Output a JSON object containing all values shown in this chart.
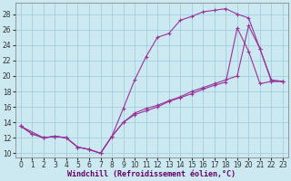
{
  "bg_color": "#cce8f0",
  "grid_color": "#99ccdd",
  "line_color": "#993399",
  "xlabel": "Windchill (Refroidissement éolien,°C)",
  "xlim": [
    -0.5,
    23.5
  ],
  "ylim": [
    9.5,
    29.5
  ],
  "xticks": [
    0,
    1,
    2,
    3,
    4,
    5,
    6,
    7,
    8,
    9,
    10,
    11,
    12,
    13,
    14,
    15,
    16,
    17,
    18,
    19,
    20,
    21,
    22,
    23
  ],
  "yticks": [
    10,
    12,
    14,
    16,
    18,
    20,
    22,
    24,
    26,
    28
  ],
  "curve1_x": [
    0,
    1,
    2,
    3,
    4,
    5,
    6,
    7,
    8,
    9,
    10,
    11,
    12,
    13,
    14,
    15,
    16,
    17,
    18,
    19,
    20,
    21,
    22,
    23
  ],
  "curve1_y": [
    13.5,
    12.5,
    12.0,
    12.2,
    12.0,
    10.8,
    10.5,
    10.0,
    12.2,
    15.8,
    19.5,
    22.5,
    25.0,
    25.5,
    27.2,
    27.7,
    28.3,
    28.5,
    28.7,
    28.0,
    27.5,
    23.5,
    19.5,
    19.3
  ],
  "curve2_x": [
    0,
    1,
    2,
    3,
    4,
    5,
    6,
    7,
    8,
    9,
    10,
    11,
    12,
    13,
    14,
    15,
    16,
    17,
    18,
    19,
    20,
    21,
    22,
    23
  ],
  "curve2_y": [
    13.5,
    12.5,
    12.0,
    12.2,
    12.0,
    10.8,
    10.5,
    10.0,
    12.2,
    14.0,
    15.0,
    15.5,
    16.0,
    16.7,
    17.2,
    17.7,
    18.3,
    18.8,
    19.2,
    26.2,
    23.2,
    19.0,
    19.3,
    19.3
  ],
  "curve3_x": [
    0,
    2,
    3,
    4,
    5,
    6,
    7,
    8,
    9,
    10,
    11,
    12,
    13,
    14,
    15,
    16,
    17,
    18,
    19,
    20,
    21,
    22,
    23
  ],
  "curve3_y": [
    13.5,
    12.0,
    12.2,
    12.0,
    10.8,
    10.5,
    10.0,
    12.2,
    14.0,
    15.2,
    15.8,
    16.2,
    16.8,
    17.3,
    18.0,
    18.5,
    19.0,
    19.5,
    20.0,
    26.5,
    23.5,
    19.3,
    19.3
  ],
  "tick_fontsize": 5.5,
  "xlabel_fontsize": 6,
  "xlabel_color": "#660066",
  "spine_color": "#777777"
}
